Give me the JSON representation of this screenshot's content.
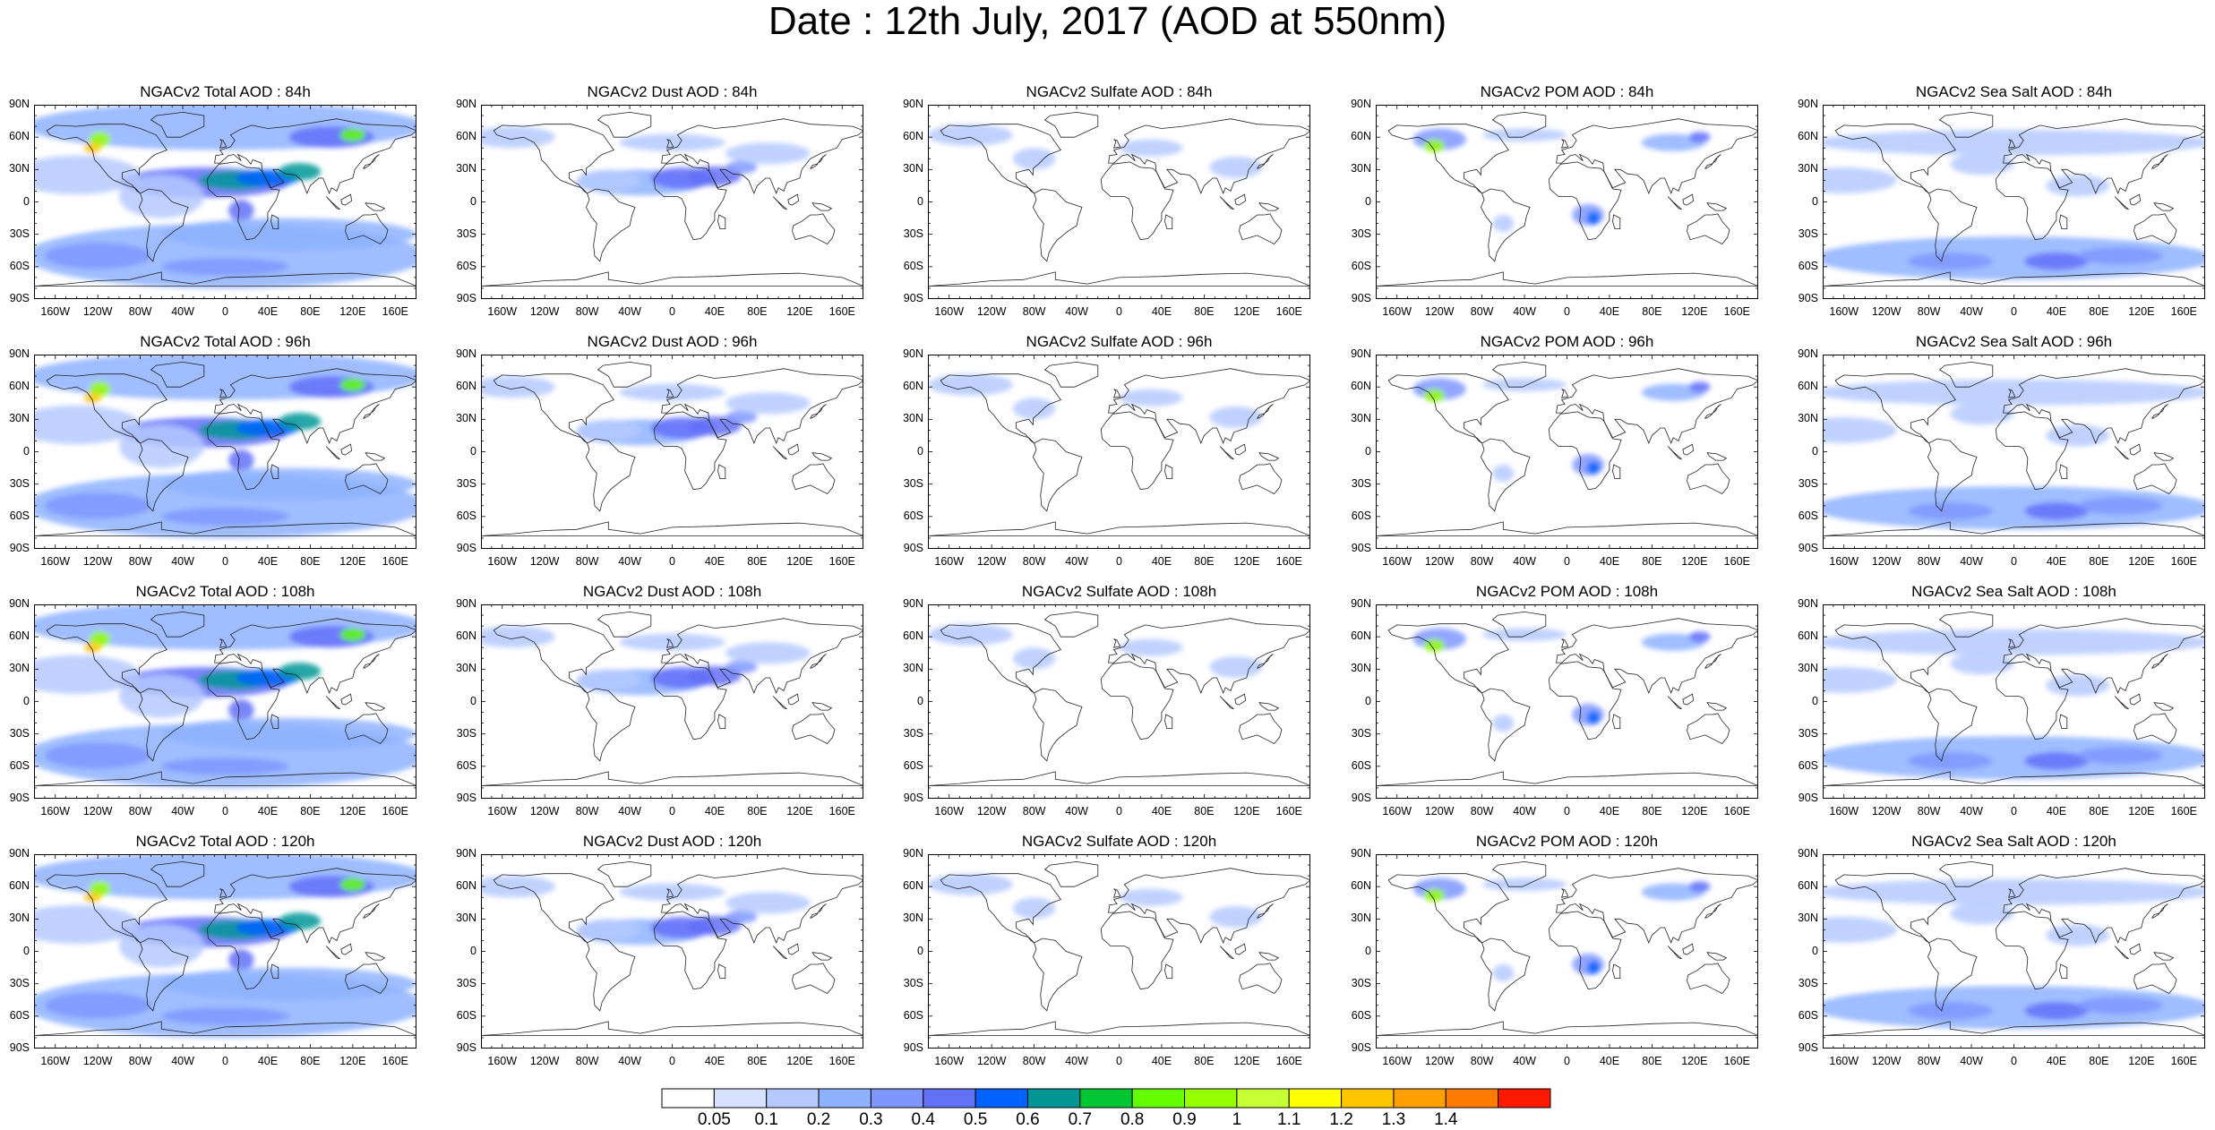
{
  "title": "Date : 12th July, 2017 (AOD at 550nm)",
  "panels": [
    {
      "title": "NGACv2 Total AOD : 84h",
      "species": "total",
      "hour": 84
    },
    {
      "title": "NGACv2 Dust AOD : 84h",
      "species": "dust",
      "hour": 84
    },
    {
      "title": "NGACv2 Sulfate AOD : 84h",
      "species": "sulfate",
      "hour": 84
    },
    {
      "title": "NGACv2 POM AOD : 84h",
      "species": "pom",
      "hour": 84
    },
    {
      "title": "NGACv2 Sea Salt AOD : 84h",
      "species": "seasalt",
      "hour": 84
    },
    {
      "title": "NGACv2 Total AOD : 96h",
      "species": "total",
      "hour": 96
    },
    {
      "title": "NGACv2 Dust AOD : 96h",
      "species": "dust",
      "hour": 96
    },
    {
      "title": "NGACv2 Sulfate AOD : 96h",
      "species": "sulfate",
      "hour": 96
    },
    {
      "title": "NGACv2 POM AOD : 96h",
      "species": "pom",
      "hour": 96
    },
    {
      "title": "NGACv2 Sea Salt AOD : 96h",
      "species": "seasalt",
      "hour": 96
    },
    {
      "title": "NGACv2 Total AOD : 108h",
      "species": "total",
      "hour": 108
    },
    {
      "title": "NGACv2 Dust AOD : 108h",
      "species": "dust",
      "hour": 108
    },
    {
      "title": "NGACv2 Sulfate AOD : 108h",
      "species": "sulfate",
      "hour": 108
    },
    {
      "title": "NGACv2 POM AOD : 108h",
      "species": "pom",
      "hour": 108
    },
    {
      "title": "NGACv2 Sea Salt AOD : 108h",
      "species": "seasalt",
      "hour": 108
    },
    {
      "title": "NGACv2 Total AOD : 120h",
      "species": "total",
      "hour": 120
    },
    {
      "title": "NGACv2 Dust AOD : 120h",
      "species": "dust",
      "hour": 120
    },
    {
      "title": "NGACv2 Sulfate AOD : 120h",
      "species": "sulfate",
      "hour": 120
    },
    {
      "title": "NGACv2 POM AOD : 120h",
      "species": "pom",
      "hour": 120
    },
    {
      "title": "NGACv2 Sea Salt  AOD : 120h",
      "species": "seasalt",
      "hour": 120
    }
  ],
  "lat_labels": [
    "90N",
    "60N",
    "30N",
    "0",
    "30S",
    "60S",
    "90S"
  ],
  "lon_labels": [
    "160W",
    "120W",
    "80W",
    "40W",
    "0",
    "40E",
    "80E",
    "120E",
    "160E"
  ],
  "colorbar": {
    "colors": [
      "#ffffff",
      "#d6e2ff",
      "#b5c9ff",
      "#8eb2ff",
      "#7f96ff",
      "#6370f8",
      "#0063ff",
      "#009696",
      "#00c633",
      "#63ff00",
      "#96ff00",
      "#c6ff33",
      "#ffff00",
      "#ffc600",
      "#ffa000",
      "#ff7c00",
      "#ff1900"
    ],
    "labels": [
      "0.05",
      "0.1",
      "0.2",
      "0.3",
      "0.4",
      "0.5",
      "0.6",
      "0.7",
      "0.8",
      "0.9",
      "1",
      "1.1",
      "1.2",
      "1.3",
      "1.4"
    ]
  }
}
